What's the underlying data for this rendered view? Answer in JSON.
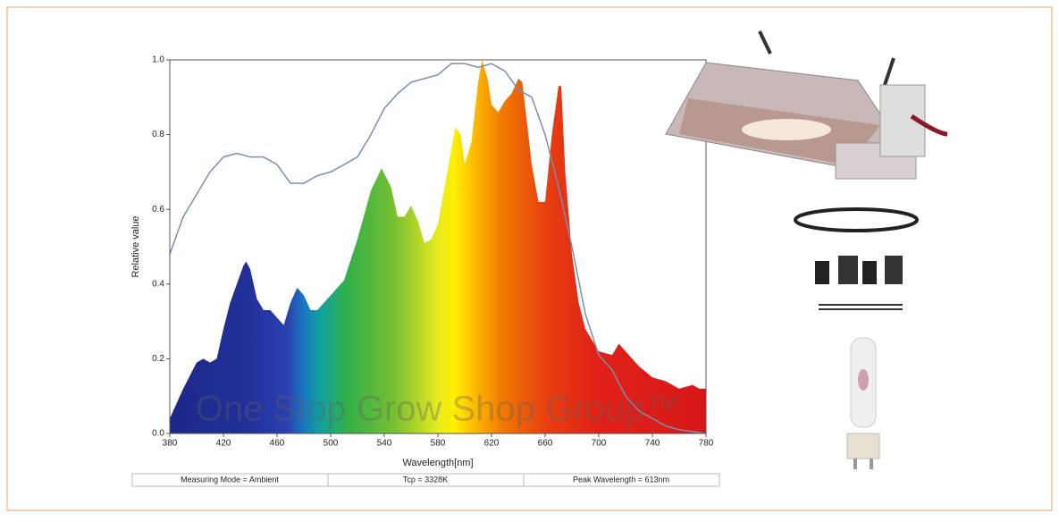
{
  "chart_data": {
    "type": "spectrum",
    "ylabel": "Relative value",
    "xlabel": "Wavelength[nm]",
    "watermark": "One Stop Grow Shop Group™",
    "annotations": [
      "Measuring Mode = Ambient",
      "Tcp = 3328K",
      "Peak Wavelength = 613nm"
    ],
    "xlim": [
      380,
      780
    ],
    "xticks": [
      380,
      420,
      460,
      500,
      540,
      580,
      620,
      660,
      700,
      740,
      780
    ],
    "ylim": [
      0,
      1
    ],
    "yticks": [
      {
        "value": 0,
        "label": "0.0"
      },
      0.2,
      0.4,
      0.6,
      0.8,
      {
        "value": 1,
        "label": "1.0"
      }
    ],
    "series": [
      {
        "type": "area",
        "x": [
          380,
          390,
          400,
          405,
          410,
          415,
          420,
          425,
          430,
          435,
          437,
          440,
          445,
          450,
          455,
          460,
          465,
          470,
          475,
          480,
          485,
          490,
          495,
          500,
          510,
          520,
          530,
          538,
          545,
          550,
          555,
          560,
          565,
          570,
          575,
          580,
          585,
          590,
          593,
          597,
          600,
          605,
          610,
          613,
          617,
          620,
          625,
          630,
          635,
          640,
          643,
          650,
          655,
          660,
          665,
          670,
          672,
          675,
          680,
          685,
          690,
          700,
          710,
          715,
          720,
          730,
          740,
          750,
          760,
          770,
          775,
          780
        ],
        "values": [
          0.04,
          0.12,
          0.19,
          0.2,
          0.19,
          0.2,
          0.28,
          0.35,
          0.4,
          0.45,
          0.46,
          0.44,
          0.36,
          0.33,
          0.33,
          0.31,
          0.29,
          0.35,
          0.39,
          0.37,
          0.33,
          0.33,
          0.35,
          0.37,
          0.41,
          0.52,
          0.65,
          0.71,
          0.66,
          0.58,
          0.58,
          0.61,
          0.57,
          0.51,
          0.52,
          0.56,
          0.66,
          0.76,
          0.82,
          0.8,
          0.72,
          0.78,
          0.94,
          1.0,
          0.95,
          0.88,
          0.86,
          0.89,
          0.91,
          0.95,
          0.94,
          0.72,
          0.62,
          0.62,
          0.8,
          0.93,
          0.93,
          0.7,
          0.48,
          0.35,
          0.28,
          0.22,
          0.21,
          0.24,
          0.22,
          0.18,
          0.15,
          0.14,
          0.12,
          0.13,
          0.12,
          0.12
        ]
      },
      {
        "type": "line",
        "color": "#7890b0",
        "x": [
          380,
          390,
          400,
          410,
          420,
          430,
          440,
          450,
          460,
          470,
          480,
          490,
          500,
          510,
          520,
          530,
          540,
          550,
          560,
          570,
          580,
          590,
          600,
          610,
          620,
          630,
          640,
          650,
          660,
          670,
          680,
          690,
          700,
          710,
          720,
          730,
          740,
          750,
          760,
          770,
          780
        ],
        "values": [
          0.48,
          0.58,
          0.64,
          0.7,
          0.74,
          0.75,
          0.74,
          0.74,
          0.72,
          0.67,
          0.67,
          0.69,
          0.7,
          0.72,
          0.74,
          0.8,
          0.87,
          0.91,
          0.94,
          0.95,
          0.96,
          0.99,
          0.99,
          0.98,
          0.99,
          0.97,
          0.92,
          0.9,
          0.8,
          0.66,
          0.5,
          0.32,
          0.21,
          0.17,
          0.1,
          0.06,
          0.04,
          0.02,
          0.01,
          0.005,
          0
        ]
      }
    ]
  }
}
